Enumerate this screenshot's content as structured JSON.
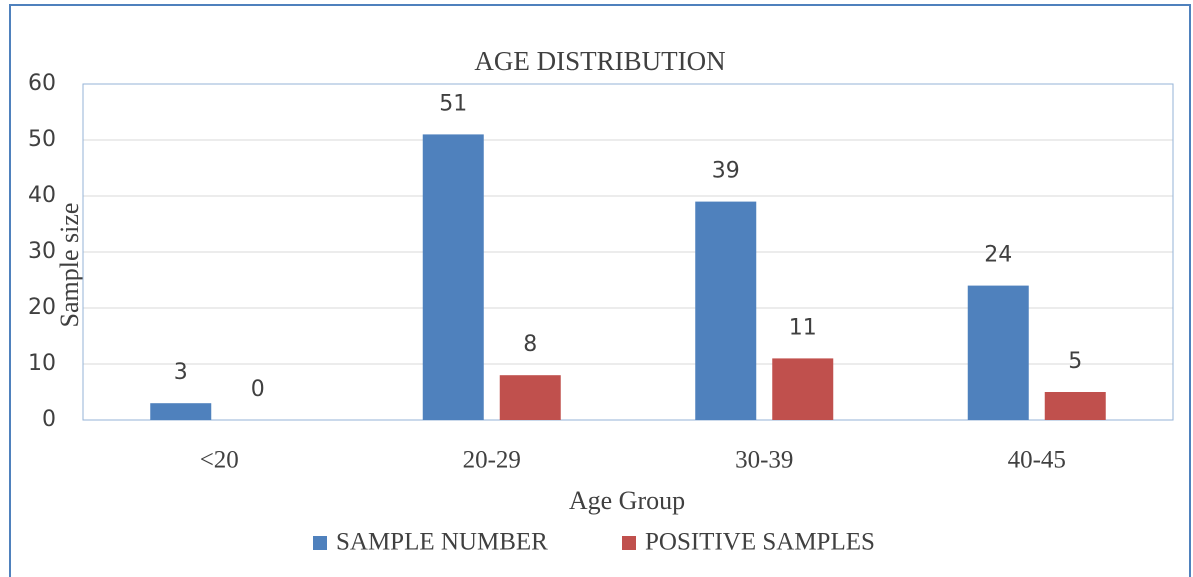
{
  "chart_data": {
    "type": "bar",
    "title": "AGE DISTRIBUTION",
    "x_label": "Age Group",
    "y_label": "Sample size",
    "categories": [
      "<20",
      "20-29",
      "30-39",
      "40-45"
    ],
    "series": [
      {
        "name": "SAMPLE NUMBER",
        "color": "#4f81bd",
        "values": [
          3,
          51,
          39,
          24
        ]
      },
      {
        "name": "POSITIVE SAMPLES",
        "color": "#c0504d",
        "values": [
          0,
          8,
          11,
          5
        ]
      }
    ],
    "ylim": [
      0,
      60
    ],
    "yticks": [
      0,
      10,
      20,
      30,
      40,
      50,
      60
    ],
    "grid": true,
    "legend": "bottom"
  }
}
